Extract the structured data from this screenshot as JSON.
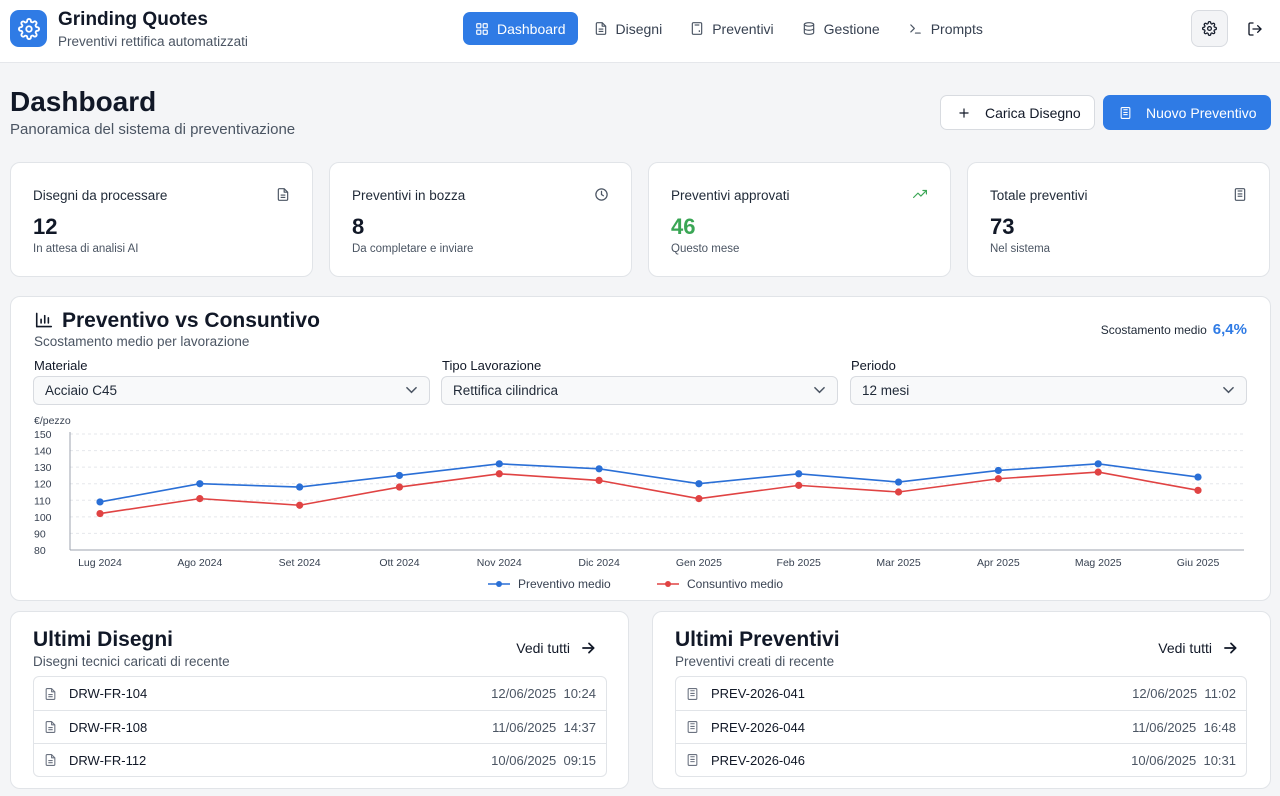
{
  "header": {
    "title": "Grinding Quotes",
    "subtitle": "Preventivi rettifica automatizzati",
    "nav": [
      {
        "label": "Dashboard",
        "icon": "grid-icon",
        "active": true
      },
      {
        "label": "Disegni",
        "icon": "file-icon",
        "active": false
      },
      {
        "label": "Preventivi",
        "icon": "calculator-icon",
        "active": false
      },
      {
        "label": "Gestione",
        "icon": "database-icon",
        "active": false
      },
      {
        "label": "Prompts",
        "icon": "terminal-icon",
        "active": false
      }
    ]
  },
  "page": {
    "title": "Dashboard",
    "subtitle": "Panoramica del sistema di preventivazione",
    "upload_label": "Carica Disegno",
    "new_quote_label": "Nuovo Preventivo"
  },
  "stats": [
    {
      "label": "Disegni da processare",
      "value": "12",
      "note": "In attesa di analisi AI",
      "icon": "file-icon"
    },
    {
      "label": "Preventivi in bozza",
      "value": "8",
      "note": "Da completare e inviare",
      "icon": "clock-icon"
    },
    {
      "label": "Preventivi approvati",
      "value": "46",
      "note": "Questo mese",
      "icon": "trending-up-icon"
    },
    {
      "label": "Totale preventivi",
      "value": "73",
      "note": "Nel sistema",
      "icon": "calculator-icon"
    }
  ],
  "chart_section": {
    "title": "Preventivo vs Consuntivo",
    "subtitle": "Scostamento medio per lavorazione",
    "deviation_label": "Scostamento medio",
    "deviation_value": "6,4%",
    "filters": [
      {
        "label": "Materiale",
        "value": "Acciaio C45"
      },
      {
        "label": "Tipo Lavorazione",
        "value": "Rettifica cilindrica"
      },
      {
        "label": "Periodo",
        "value": "12 mesi"
      }
    ]
  },
  "chart_data": {
    "type": "line",
    "ylabel": "€/pezzo",
    "ylim": [
      80,
      150
    ],
    "yticks": [
      80,
      90,
      100,
      110,
      120,
      130,
      140,
      150
    ],
    "grid": true,
    "legend": "bottom",
    "categories": [
      "Lug 2024",
      "Ago 2024",
      "Set 2024",
      "Ott 2024",
      "Nov 2024",
      "Dic 2024",
      "Gen 2025",
      "Feb 2025",
      "Mar 2025",
      "Apr 2025",
      "Mag 2025",
      "Giu 2025"
    ],
    "series": [
      {
        "name": "Preventivo medio",
        "color": "#2a6fd6",
        "values": [
          109,
          120,
          118,
          125,
          132,
          129,
          120,
          126,
          121,
          128,
          132,
          124
        ]
      },
      {
        "name": "Consuntivo medio",
        "color": "#e04343",
        "values": [
          102,
          111,
          107,
          118,
          126,
          122,
          111,
          119,
          115,
          123,
          127,
          116
        ]
      }
    ]
  },
  "drawings": {
    "title": "Ultimi Disegni",
    "subtitle": "Disegni tecnici caricati di recente",
    "see_all": "Vedi tutti",
    "items": [
      {
        "name": "DRW-FR-104",
        "date": "12/06/2025  10:24"
      },
      {
        "name": "DRW-FR-108",
        "date": "11/06/2025  14:37"
      },
      {
        "name": "DRW-FR-112",
        "date": "10/06/2025  09:15"
      }
    ]
  },
  "quotes": {
    "title": "Ultimi Preventivi",
    "subtitle": "Preventivi creati di recente",
    "see_all": "Vedi tutti",
    "items": [
      {
        "name": "PREV-2026-041",
        "date": "12/06/2025  11:02"
      },
      {
        "name": "PREV-2026-044",
        "date": "11/06/2025  16:48"
      },
      {
        "name": "PREV-2026-046",
        "date": "10/06/2025  10:31"
      }
    ]
  }
}
